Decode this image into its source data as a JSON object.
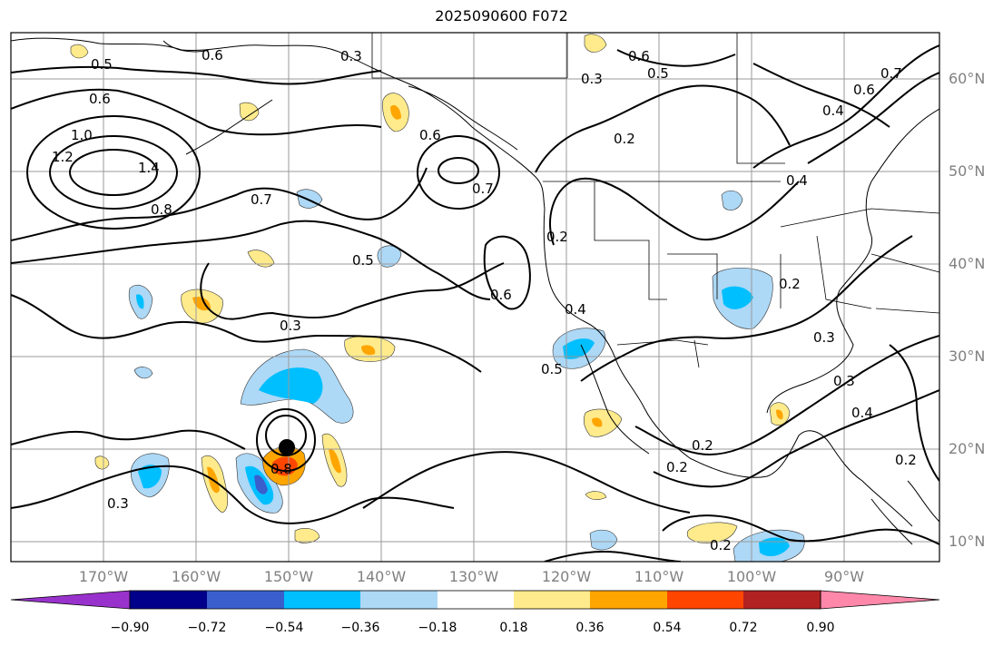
{
  "title": "2025090600 F072",
  "lat_labels": [
    "60°N",
    "50°N",
    "40°N",
    "30°N",
    "20°N",
    "10°N"
  ],
  "lon_labels": [
    "170°W",
    "160°W",
    "150°W",
    "140°W",
    "130°W",
    "120°W",
    "110°W",
    "100°W",
    "90°W"
  ],
  "colorbar": {
    "ticks": [
      "−0.90",
      "−0.72",
      "−0.54",
      "−0.36",
      "−0.18",
      "0.18",
      "0.36",
      "0.54",
      "0.72",
      "0.90"
    ],
    "colors": [
      "#9932cc",
      "#00008b",
      "#3a5fcd",
      "#00bfff",
      "#add8f6",
      "#ffffff",
      "#ffeb8c",
      "#ffa500",
      "#ff4500",
      "#b22222",
      "#ff88aa"
    ]
  },
  "contour_labels": [
    "0.5",
    "0.6",
    "0.3",
    "0.6",
    "0.5",
    "0.7",
    "0.6",
    "0.3",
    "0.6",
    "1.0",
    "1.2",
    "1.4",
    "0.8",
    "0.7",
    "0.6",
    "0.7",
    "0.2",
    "0.4",
    "0.4",
    "0.2",
    "0.5",
    "0.6",
    "0.2",
    "0.4",
    "0.3",
    "0.5",
    "0.3",
    "0.4",
    "0.3",
    "0.2",
    "0.2",
    "0.3",
    "0.2",
    "0.2",
    "0.8"
  ],
  "storm_marker": "black-dot",
  "extent": {
    "lon_min": -180,
    "lon_max": -80,
    "lat_min": 8,
    "lat_max": 65
  },
  "gridlines": true
}
